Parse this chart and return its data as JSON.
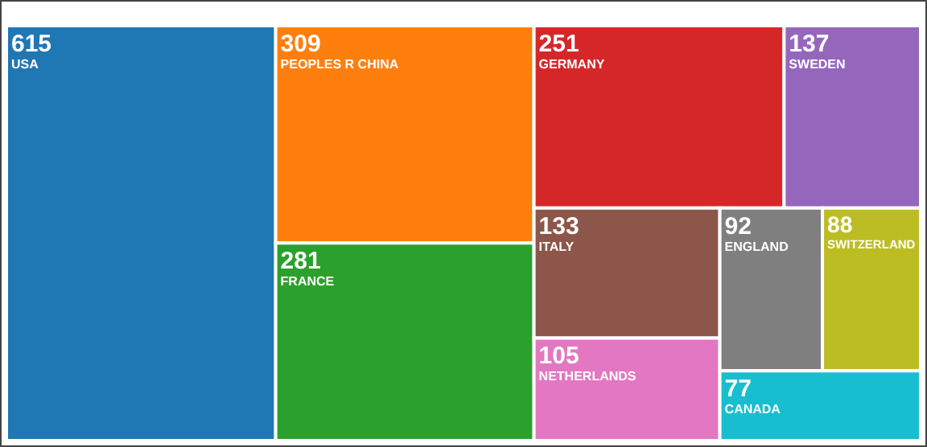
{
  "chart_data": {
    "type": "other",
    "categories": [
      "USA",
      "PEOPLES R CHINA",
      "FRANCE",
      "GERMANY",
      "SWEDEN",
      "ITALY",
      "NETHERLANDS",
      "ENGLAND",
      "SWITZERLAND",
      "CANADA"
    ],
    "values": [
      615,
      309,
      281,
      251,
      137,
      133,
      105,
      92,
      88,
      77
    ],
    "colors": [
      "#1f77b4",
      "#ff7f0e",
      "#2ca02c",
      "#d62728",
      "#9467bd",
      "#8c564b",
      "#e377c2",
      "#7f7f7f",
      "#bcbd22",
      "#17becf"
    ],
    "data_labels": true
  }
}
